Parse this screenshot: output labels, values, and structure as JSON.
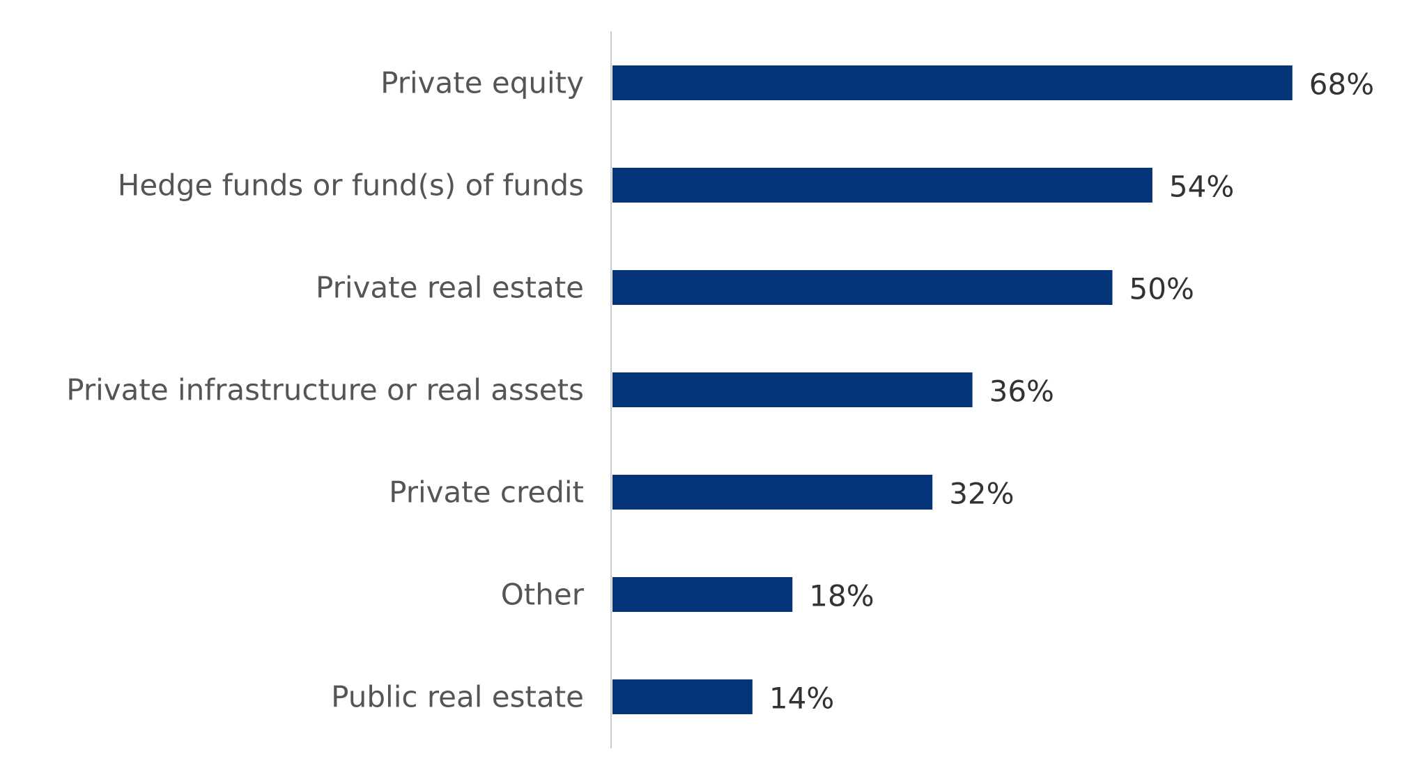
{
  "chart_data": {
    "type": "bar",
    "orientation": "horizontal",
    "categories": [
      "Private equity",
      "Hedge funds or fund(s) of funds",
      "Private real estate",
      "Private infrastructure or real assets",
      "Private credit",
      "Other",
      "Public real estate"
    ],
    "values": [
      68,
      54,
      50,
      36,
      32,
      18,
      14
    ],
    "value_labels": [
      "68%",
      "54%",
      "50%",
      "36%",
      "32%",
      "18%",
      "14%"
    ],
    "unit": "%",
    "xlim": [
      0,
      100
    ],
    "grid": false,
    "legend": "none",
    "colors": {
      "bar": "#063478",
      "axis": "#cccccc",
      "category_text": "#555555",
      "value_text": "#333333"
    }
  }
}
